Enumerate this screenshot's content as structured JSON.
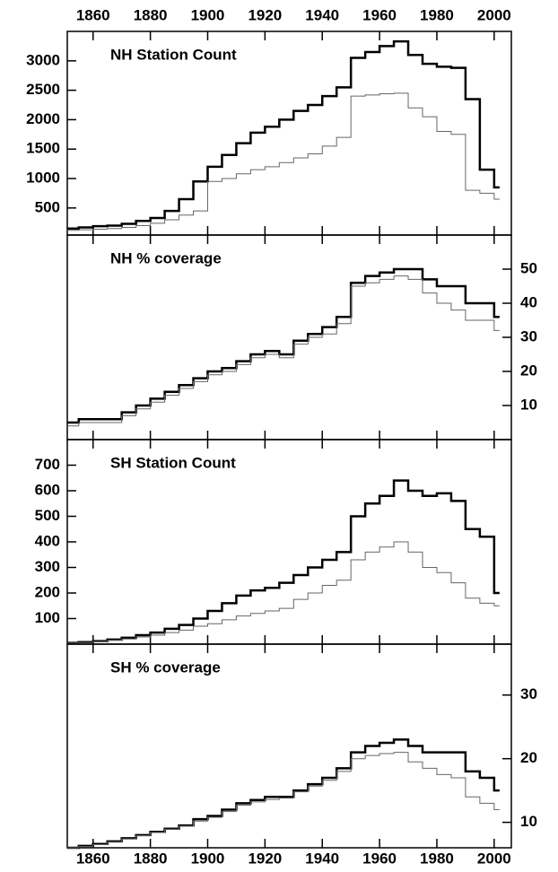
{
  "chart_data": [
    {
      "type": "line",
      "title": "NH Station Count",
      "y_axis_side": "left",
      "x": [
        1851,
        1855,
        1860,
        1865,
        1870,
        1875,
        1880,
        1885,
        1890,
        1895,
        1900,
        1905,
        1910,
        1915,
        1920,
        1925,
        1930,
        1935,
        1940,
        1945,
        1950,
        1955,
        1960,
        1965,
        1970,
        1975,
        1980,
        1985,
        1990,
        1995,
        2000
      ],
      "series": [
        {
          "color": "#000000",
          "width": 2.5,
          "values": [
            150,
            170,
            190,
            200,
            230,
            280,
            330,
            450,
            650,
            950,
            1200,
            1400,
            1600,
            1780,
            1880,
            2000,
            2150,
            2250,
            2400,
            2550,
            3050,
            3150,
            3250,
            3330,
            3100,
            2950,
            2900,
            2880,
            2350,
            1150,
            850
          ]
        },
        {
          "color": "#666666",
          "width": 1,
          "values": [
            120,
            130,
            140,
            150,
            170,
            200,
            240,
            300,
            380,
            450,
            950,
            1000,
            1080,
            1150,
            1200,
            1270,
            1350,
            1420,
            1550,
            1700,
            2400,
            2420,
            2440,
            2450,
            2200,
            2050,
            1800,
            1750,
            800,
            750,
            650
          ]
        }
      ],
      "xlim": [
        1851,
        2006
      ],
      "xticks": [
        1860,
        1880,
        1900,
        1920,
        1940,
        1960,
        1980,
        2000
      ],
      "ylim": [
        40,
        3500
      ],
      "yticks": [
        500,
        1000,
        1500,
        2000,
        2500,
        3000
      ]
    },
    {
      "type": "line",
      "title": "NH % coverage",
      "y_axis_side": "right",
      "x": [
        1851,
        1855,
        1860,
        1865,
        1870,
        1875,
        1880,
        1885,
        1890,
        1895,
        1900,
        1905,
        1910,
        1915,
        1920,
        1925,
        1930,
        1935,
        1940,
        1945,
        1950,
        1955,
        1960,
        1965,
        1970,
        1975,
        1980,
        1985,
        1990,
        1995,
        2000
      ],
      "series": [
        {
          "color": "#000000",
          "width": 2.5,
          "values": [
            5,
            6,
            6,
            6,
            8,
            10,
            12,
            14,
            16,
            18,
            20,
            21,
            23,
            25,
            26,
            25,
            29,
            31,
            33,
            36,
            46,
            48,
            49,
            50,
            50,
            47,
            45,
            45,
            40,
            40,
            36
          ]
        },
        {
          "color": "#666666",
          "width": 1,
          "values": [
            4,
            5,
            5,
            5,
            7,
            9,
            11,
            13,
            15,
            17,
            19,
            20,
            22,
            24,
            25,
            24,
            28,
            30,
            31,
            34,
            45,
            46,
            47,
            48,
            47,
            43,
            40,
            38,
            35,
            35,
            32
          ]
        }
      ],
      "xlim": [
        1851,
        2006
      ],
      "xticks": [
        1860,
        1880,
        1900,
        1920,
        1940,
        1960,
        1980,
        2000
      ],
      "ylim": [
        0,
        60
      ],
      "yticks": [
        10,
        20,
        30,
        40,
        50
      ]
    },
    {
      "type": "line",
      "title": "SH Station Count",
      "y_axis_side": "left",
      "x": [
        1851,
        1855,
        1860,
        1865,
        1870,
        1875,
        1880,
        1885,
        1890,
        1895,
        1900,
        1905,
        1910,
        1915,
        1920,
        1925,
        1930,
        1935,
        1940,
        1945,
        1950,
        1955,
        1960,
        1965,
        1970,
        1975,
        1980,
        1985,
        1990,
        1995,
        2000
      ],
      "series": [
        {
          "color": "#000000",
          "width": 2.5,
          "values": [
            5,
            8,
            12,
            18,
            25,
            35,
            45,
            60,
            75,
            100,
            130,
            160,
            190,
            210,
            220,
            240,
            270,
            300,
            330,
            360,
            500,
            550,
            580,
            640,
            600,
            580,
            590,
            560,
            450,
            420,
            200
          ]
        },
        {
          "color": "#666666",
          "width": 1,
          "values": [
            4,
            6,
            10,
            15,
            20,
            28,
            35,
            45,
            55,
            70,
            80,
            95,
            110,
            120,
            130,
            140,
            175,
            200,
            230,
            250,
            330,
            360,
            380,
            400,
            360,
            300,
            280,
            240,
            180,
            160,
            150
          ]
        }
      ],
      "xlim": [
        1851,
        2006
      ],
      "xticks": [
        1860,
        1880,
        1900,
        1920,
        1940,
        1960,
        1980,
        2000
      ],
      "ylim": [
        0,
        800
      ],
      "yticks": [
        100,
        200,
        300,
        400,
        500,
        600,
        700
      ]
    },
    {
      "type": "line",
      "title": "SH % coverage",
      "y_axis_side": "right",
      "x": [
        1851,
        1855,
        1860,
        1865,
        1870,
        1875,
        1880,
        1885,
        1890,
        1895,
        1900,
        1905,
        1910,
        1915,
        1920,
        1925,
        1930,
        1935,
        1940,
        1945,
        1950,
        1955,
        1960,
        1965,
        1970,
        1975,
        1980,
        1985,
        1990,
        1995,
        2000
      ],
      "series": [
        {
          "color": "#000000",
          "width": 2.5,
          "values": [
            6,
            6.3,
            6.6,
            7,
            7.5,
            8,
            8.5,
            9,
            9.5,
            10.5,
            11,
            12,
            13,
            13.5,
            14,
            14,
            15,
            16,
            17,
            18.5,
            21,
            22,
            22.5,
            23,
            22,
            21,
            21,
            21,
            18,
            17,
            15
          ]
        },
        {
          "color": "#666666",
          "width": 1,
          "values": [
            6,
            6.2,
            6.5,
            6.9,
            7.4,
            7.9,
            8.4,
            8.9,
            9.4,
            10.2,
            10.8,
            11.7,
            12.7,
            13.2,
            13.6,
            13.8,
            14.8,
            15.7,
            16.6,
            18,
            20,
            20.5,
            20.8,
            21,
            19.5,
            18.5,
            17.5,
            17,
            14,
            13,
            12
          ]
        }
      ],
      "xlim": [
        1851,
        2006
      ],
      "xticks": [
        1860,
        1880,
        1900,
        1920,
        1940,
        1960,
        1980,
        2000
      ],
      "ylim": [
        6,
        38
      ],
      "yticks": [
        10,
        20,
        30
      ]
    }
  ]
}
